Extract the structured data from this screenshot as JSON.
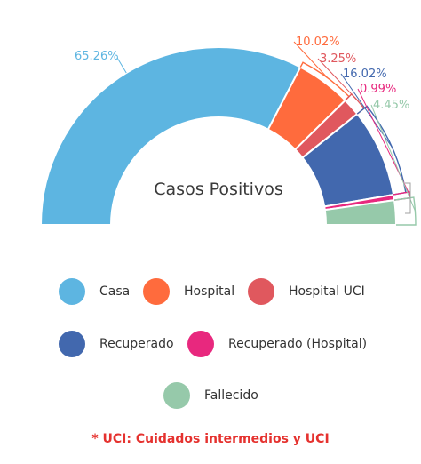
{
  "chart_data": {
    "type": "pie",
    "subtype": "half-donut",
    "center_label": "Casos Positivos",
    "series": [
      {
        "name": "Casa",
        "value": 65.26,
        "label": "65.26%",
        "color": "#5DB5E1"
      },
      {
        "name": "Hospital",
        "value": 10.02,
        "label": "10.02%",
        "color": "#FF6B3D"
      },
      {
        "name": "Hospital UCI",
        "value": 3.25,
        "label": "3.25%",
        "color": "#E0585E"
      },
      {
        "name": "Recuperado",
        "value": 16.02,
        "label": "16.02%",
        "color": "#4268AE"
      },
      {
        "name": "Recuperado (Hospital)",
        "value": 0.99,
        "label": "0.99%",
        "color": "#E8287E"
      },
      {
        "name": "Fallecido",
        "value": 4.45,
        "label": "4.45%",
        "color": "#96C9AA"
      }
    ],
    "legend_position": "bottom"
  },
  "footnote": "* UCI: Cuidados intermedios y UCI",
  "colors": {
    "footnote": "#E5322F",
    "bracket": "#A0A0A0"
  }
}
